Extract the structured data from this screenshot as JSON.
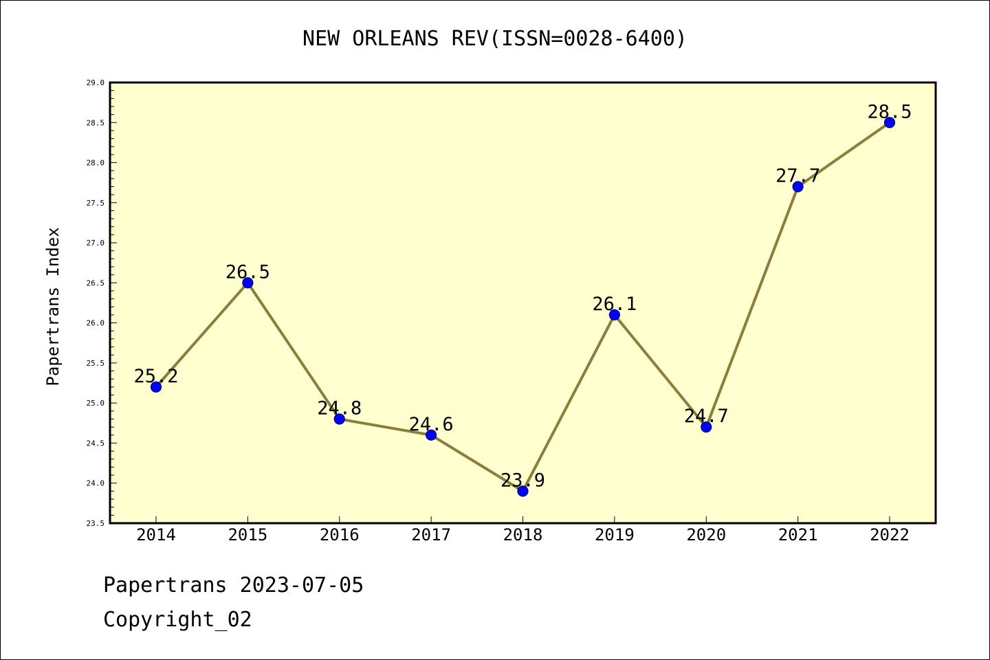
{
  "chart_data": {
    "type": "line",
    "title": "NEW ORLEANS REV(ISSN=0028-6400)",
    "xlabel": "",
    "ylabel": "Papertrans Index",
    "categories": [
      "2014",
      "2015",
      "2016",
      "2017",
      "2018",
      "2019",
      "2020",
      "2021",
      "2022"
    ],
    "series": [
      {
        "values": [
          25.2,
          26.5,
          24.8,
          24.6,
          23.9,
          26.1,
          24.7,
          27.7,
          28.5
        ],
        "data_labels": [
          "25.2",
          "26.5",
          "24.8",
          "24.6",
          "23.9",
          "26.1",
          "24.7",
          "27.7",
          "28.5"
        ]
      }
    ],
    "ylim": [
      23.5,
      29.0
    ],
    "yticks": [
      "23.5",
      "24.0",
      "24.5",
      "25.0",
      "25.5",
      "26.0",
      "26.5",
      "27.0",
      "27.5",
      "28.0",
      "28.5",
      "29.0"
    ],
    "grid": false,
    "legend": "none",
    "colors": {
      "plot_background": "#FFFFD0",
      "line": "#8B7D3A",
      "marker": "#0000FF",
      "marker_edge": "#000080"
    }
  },
  "footer": {
    "line1": "Papertrans 2023-07-05",
    "line2": "Copyright_02"
  }
}
